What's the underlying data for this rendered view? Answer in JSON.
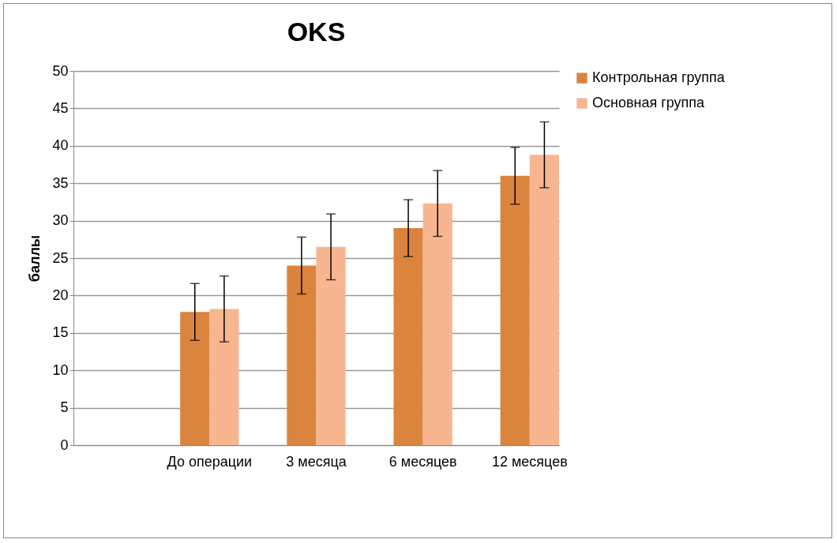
{
  "chart_data": {
    "type": "bar",
    "title": "OKS",
    "ylabel": "баллы",
    "categories": [
      null,
      "До операции",
      "3 месяца",
      "6 месяцев",
      "12 месяцев"
    ],
    "series": [
      {
        "name": "Контрольная группа",
        "color": "#db843d",
        "values": [
          null,
          17.8,
          24.0,
          29.0,
          36.0
        ],
        "errors": [
          null,
          3.8,
          3.8,
          3.8,
          3.8
        ]
      },
      {
        "name": "Основная группа",
        "color": "#f7b590",
        "values": [
          null,
          18.2,
          26.5,
          32.3,
          38.8
        ],
        "errors": [
          null,
          4.4,
          4.4,
          4.4,
          4.4
        ]
      }
    ],
    "ylim": [
      0,
      50
    ],
    "yticks": [
      0,
      5,
      10,
      15,
      20,
      25,
      30,
      35,
      40,
      45,
      50
    ],
    "grid": "y",
    "legend": "right"
  }
}
